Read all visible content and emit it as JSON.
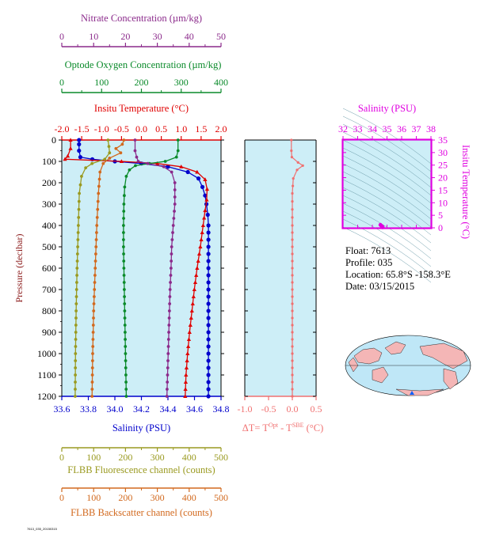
{
  "info": {
    "float": "Float:  7613",
    "profile": "Profile:  035",
    "location": "Location:  65.8°S  -158.3°E",
    "date": "Date:  03/15/2015"
  },
  "footer_id": "7613_035_20150315",
  "colors": {
    "nitrate": "#8b2a8b",
    "oxygen": "#0a8a2a",
    "temperature": "#e00000",
    "salinity": "#0000cc",
    "fluorescence": "#9a9a20",
    "backscatter": "#d2691e",
    "delta_t": "#f07070",
    "magenta": "#e000e0",
    "plot_bg": "#cdeef7"
  },
  "chart_data": [
    {
      "type": "line",
      "panel": "main-profile",
      "ylabel": "Pressure (decibar)",
      "ylim": [
        1200,
        0
      ],
      "yticks": [
        0,
        100,
        200,
        300,
        400,
        500,
        600,
        700,
        800,
        900,
        1000,
        1100,
        1200
      ],
      "axes": {
        "nitrate": {
          "label": "Nitrate Concentration (µm/kg)",
          "range": [
            0,
            50
          ],
          "ticks": [
            0,
            10,
            20,
            30,
            40,
            50
          ]
        },
        "oxygen": {
          "label": "Optode Oxygen Concentration (µm/kg)",
          "range": [
            0,
            400
          ],
          "ticks": [
            0,
            100,
            200,
            300,
            400
          ]
        },
        "temperature": {
          "label": "Insitu Temperature (°C)",
          "range": [
            -2.0,
            2.0
          ],
          "ticks": [
            "-2.0",
            "-1.5",
            "-1.0",
            "-0.5",
            "0.0",
            "0.5",
            "1.0",
            "1.5",
            "2.0"
          ]
        },
        "salinity": {
          "label": "Salinity (PSU)",
          "range": [
            33.6,
            34.8
          ],
          "ticks": [
            "33.6",
            "33.8",
            "34.0",
            "34.2",
            "34.4",
            "34.6",
            "34.8"
          ]
        },
        "fluorescence": {
          "label": "FLBB Fluorescence channel (counts)",
          "range": [
            0,
            500
          ],
          "ticks": [
            0,
            100,
            200,
            300,
            400,
            500
          ]
        },
        "backscatter": {
          "label": "FLBB Backscatter channel (counts)",
          "range": [
            0,
            500
          ],
          "ticks": [
            0,
            100,
            200,
            300,
            400,
            500
          ]
        }
      },
      "series": [
        {
          "name": "Salinity",
          "axis": "salinity",
          "marker": "circle",
          "points": [
            [
              33.73,
              0
            ],
            [
              33.73,
              20
            ],
            [
              33.73,
              50
            ],
            [
              33.74,
              80
            ],
            [
              33.83,
              90
            ],
            [
              34.0,
              100
            ],
            [
              34.2,
              110
            ],
            [
              34.4,
              125
            ],
            [
              34.55,
              150
            ],
            [
              34.63,
              180
            ],
            [
              34.66,
              220
            ],
            [
              34.68,
              260
            ],
            [
              34.69,
              300
            ],
            [
              34.7,
              350
            ],
            [
              34.705,
              400
            ],
            [
              34.705,
              500
            ],
            [
              34.705,
              600
            ],
            [
              34.705,
              700
            ],
            [
              34.705,
              800
            ],
            [
              34.705,
              900
            ],
            [
              34.705,
              1000
            ],
            [
              34.705,
              1100
            ],
            [
              34.705,
              1200
            ]
          ]
        },
        {
          "name": "Temperature",
          "axis": "temperature",
          "marker": "triangle",
          "points": [
            [
              -1.78,
              0
            ],
            [
              -1.78,
              40
            ],
            [
              -1.85,
              75
            ],
            [
              -1.92,
              90
            ],
            [
              -0.5,
              100
            ],
            [
              0.4,
              110
            ],
            [
              1.0,
              125
            ],
            [
              1.4,
              150
            ],
            [
              1.6,
              185
            ],
            [
              1.65,
              230
            ],
            [
              1.64,
              280
            ],
            [
              1.6,
              330
            ],
            [
              1.55,
              400
            ],
            [
              1.48,
              500
            ],
            [
              1.4,
              600
            ],
            [
              1.33,
              700
            ],
            [
              1.27,
              800
            ],
            [
              1.21,
              900
            ],
            [
              1.16,
              1000
            ],
            [
              1.12,
              1100
            ],
            [
              1.1,
              1200
            ]
          ]
        },
        {
          "name": "Oxygen",
          "axis": "oxygen",
          "marker": "circle",
          "points": [
            [
              292,
              0
            ],
            [
              292,
              50
            ],
            [
              288,
              80
            ],
            [
              260,
              100
            ],
            [
              220,
              110
            ],
            [
              185,
              120
            ],
            [
              170,
              140
            ],
            [
              162,
              170
            ],
            [
              158,
              220
            ],
            [
              156,
              300
            ],
            [
              155,
              400
            ],
            [
              155,
              500
            ],
            [
              156,
              600
            ],
            [
              157,
              700
            ],
            [
              158,
              800
            ],
            [
              159,
              900
            ],
            [
              160,
              1000
            ],
            [
              161,
              1100
            ],
            [
              162,
              1200
            ]
          ]
        },
        {
          "name": "Nitrate",
          "axis": "nitrate",
          "marker": "circle",
          "points": [
            [
              23,
              0
            ],
            [
              23,
              50
            ],
            [
              23.5,
              80
            ],
            [
              24,
              100
            ],
            [
              27,
              110
            ],
            [
              32,
              125
            ],
            [
              34.5,
              150
            ],
            [
              35.5,
              200
            ],
            [
              35.5,
              300
            ],
            [
              35,
              400
            ],
            [
              34.5,
              500
            ],
            [
              34.3,
              600
            ],
            [
              34,
              700
            ],
            [
              33.8,
              800
            ],
            [
              33.6,
              900
            ],
            [
              33.4,
              1000
            ],
            [
              33.2,
              1100
            ],
            [
              33,
              1200
            ]
          ]
        },
        {
          "name": "Fluorescence",
          "axis": "fluorescence",
          "marker": "circle",
          "points": [
            [
              145,
              0
            ],
            [
              148,
              30
            ],
            [
              150,
              60
            ],
            [
              135,
              90
            ],
            [
              95,
              110
            ],
            [
              75,
              130
            ],
            [
              62,
              170
            ],
            [
              55,
              250
            ],
            [
              52,
              400
            ],
            [
              48,
              600
            ],
            [
              45,
              800
            ],
            [
              43,
              1000
            ],
            [
              42,
              1200
            ]
          ]
        },
        {
          "name": "Backscatter",
          "axis": "backscatter",
          "marker": "circle",
          "points": [
            [
              195,
              0
            ],
            [
              190,
              20
            ],
            [
              170,
              40
            ],
            [
              185,
              60
            ],
            [
              150,
              85
            ],
            [
              130,
              110
            ],
            [
              120,
              150
            ],
            [
              115,
              250
            ],
            [
              110,
              400
            ],
            [
              105,
              600
            ],
            [
              100,
              800
            ],
            [
              97,
              1000
            ],
            [
              95,
              1200
            ]
          ]
        }
      ]
    },
    {
      "type": "line",
      "panel": "delta-t",
      "xlabel": "ΔT= T",
      "xlabel_sup1": "Opt",
      "xlabel_mid": " - T",
      "xlabel_sup2": "SBE",
      "xlabel_unit": " (°C)",
      "xlim": [
        -1.0,
        0.5
      ],
      "xticks": [
        "-1.0",
        "-0.5",
        "0.0",
        "0.5"
      ],
      "ylim": [
        1200,
        0
      ],
      "series": [
        {
          "name": "ΔT",
          "marker": "circle",
          "points": [
            [
              -0.02,
              0
            ],
            [
              -0.02,
              50
            ],
            [
              -0.01,
              80
            ],
            [
              0.12,
              105
            ],
            [
              0.22,
              120
            ],
            [
              0.1,
              140
            ],
            [
              0.02,
              180
            ],
            [
              0.0,
              250
            ],
            [
              0.0,
              400
            ],
            [
              0.0,
              600
            ],
            [
              0.0,
              800
            ],
            [
              0.0,
              1000
            ],
            [
              0.0,
              1200
            ]
          ]
        }
      ]
    },
    {
      "type": "scatter",
      "panel": "ts-diagram",
      "title": "Salinity (PSU)",
      "xlim": [
        32,
        38
      ],
      "xticks": [
        32,
        33,
        34,
        35,
        36,
        37,
        38
      ],
      "ylabel": "Insitu Temperature (°C)",
      "ylim": [
        0,
        35
      ],
      "yticks": [
        0,
        5,
        10,
        15,
        20,
        25,
        30,
        35
      ],
      "points": [
        [
          34.7,
          0.2
        ],
        [
          34.7,
          0.4
        ],
        [
          34.65,
          0.6
        ],
        [
          34.6,
          0.9
        ],
        [
          34.55,
          1.2
        ]
      ]
    }
  ]
}
